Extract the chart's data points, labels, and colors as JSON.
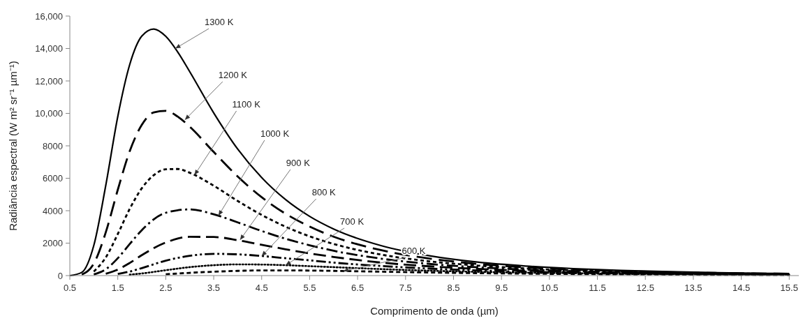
{
  "chart_data": {
    "type": "line",
    "xlabel": "Comprimento de onda (µm)",
    "ylabel": "Radiância espectral  (W m² sr⁻¹ µm⁻¹)",
    "xlim": [
      0.5,
      15.7
    ],
    "xticks": [
      0.5,
      1.5,
      2.5,
      3.5,
      4.5,
      5.5,
      6.5,
      7.5,
      8.5,
      9.5,
      10.5,
      11.5,
      12.5,
      13.5,
      14.5,
      15.5
    ],
    "ylim": [
      0,
      16000
    ],
    "yticks": [
      0,
      2000,
      4000,
      6000,
      8000,
      {
        "value": 10000,
        "label": "10,000"
      },
      {
        "value": 12000,
        "label": "12,000"
      },
      {
        "value": 14000,
        "label": "14,000"
      },
      {
        "value": 16000,
        "label": "16,000"
      }
    ],
    "grid": false,
    "marker": "none",
    "series": [
      {
        "color": "#000000",
        "line_style": "solid",
        "x": [
          0.5,
          0.75,
          1,
          1.25,
          1.5,
          1.75,
          2,
          2.25,
          2.5,
          2.75,
          3,
          3.5,
          4,
          4.5,
          5,
          5.5,
          6,
          7,
          8,
          9,
          10,
          11,
          12,
          13,
          14,
          15,
          15.5
        ],
        "values": [
          0,
          200,
          1860,
          5570,
          9810,
          13020,
          14760,
          15200,
          14750,
          13780,
          12570,
          10030,
          7800,
          6040,
          4680,
          3650,
          2870,
          1840,
          1220,
          830,
          590,
          430,
          320,
          240,
          180,
          140,
          130
        ]
      },
      {
        "color": "#000000",
        "line_style": "dashed",
        "x": [
          0.75,
          1,
          1.25,
          1.5,
          1.75,
          2,
          2.25,
          2.5,
          2.75,
          3,
          3.5,
          4,
          4.5,
          5,
          5.5,
          6,
          7,
          8,
          9,
          10,
          12,
          14,
          15.5
        ],
        "values": [
          60,
          740,
          2670,
          5290,
          7680,
          9290,
          10060,
          10160,
          9800,
          9180,
          7620,
          6110,
          4830,
          3810,
          3020,
          2400,
          1560,
          1050,
          720,
          510,
          280,
          160,
          110
        ]
      },
      {
        "color": "#000000",
        "line_style": "dashed",
        "x": [
          1,
          1.25,
          1.5,
          1.75,
          2,
          2.25,
          2.5,
          2.75,
          3,
          3.5,
          4,
          4.5,
          5,
          5.5,
          6,
          7,
          8,
          9,
          10,
          12,
          14,
          15.5
        ],
        "values": [
          250,
          1120,
          2560,
          4120,
          5380,
          6190,
          6550,
          6570,
          6340,
          5540,
          4600,
          3740,
          3010,
          2420,
          1950,
          1290,
          880,
          620,
          440,
          240,
          140,
          100
        ]
      },
      {
        "color": "#000000",
        "line_style": "dashed",
        "x": [
          1,
          1.25,
          1.5,
          1.75,
          2,
          2.5,
          3,
          3.5,
          4,
          4.5,
          5,
          5.5,
          6,
          7,
          8,
          9,
          10,
          12,
          14,
          15.5
        ],
        "values": [
          70,
          390,
          1070,
          1950,
          2800,
          3870,
          4080,
          3780,
          3280,
          2750,
          2270,
          1870,
          1530,
          1040,
          720,
          510,
          370,
          210,
          120,
          90
        ]
      },
      {
        "color": "#000000",
        "line_style": "dashed",
        "x": [
          1.25,
          1.5,
          1.75,
          2,
          2.5,
          3,
          3.5,
          4,
          4.5,
          5,
          5.5,
          6,
          7,
          8,
          9,
          10,
          12,
          14,
          15.5
        ],
        "values": [
          110,
          370,
          780,
          1260,
          2040,
          2390,
          2380,
          2180,
          1900,
          1620,
          1370,
          1150,
          800,
          570,
          410,
          300,
          170,
          100,
          70
        ]
      },
      {
        "color": "#000000",
        "line_style": "dashed",
        "x": [
          1.5,
          1.75,
          2,
          2.5,
          3,
          3.5,
          4,
          4.5,
          5,
          5.5,
          6,
          7,
          8,
          9,
          10,
          12,
          14,
          15.5
        ],
        "values": [
          100,
          250,
          460,
          920,
          1220,
          1340,
          1310,
          1210,
          1070,
          940,
          800,
          590,
          430,
          320,
          240,
          140,
          90,
          60
        ]
      },
      {
        "color": "#000000",
        "line_style": "dotted",
        "x": [
          1.75,
          2,
          2.5,
          3,
          3.5,
          4,
          4.5,
          5,
          5.5,
          6,
          7,
          8,
          9,
          10,
          12,
          14,
          15.5
        ],
        "values": [
          60,
          130,
          330,
          520,
          640,
          690,
          680,
          640,
          580,
          520,
          400,
          300,
          230,
          180,
          110,
          70,
          50
        ]
      },
      {
        "color": "#000000",
        "line_style": "dashed",
        "x": [
          2.5,
          3,
          3.5,
          4,
          4.5,
          5,
          5.5,
          6,
          7,
          8,
          9,
          10,
          12,
          14,
          15.5
        ],
        "values": [
          80,
          170,
          240,
          290,
          320,
          320,
          310,
          290,
          240,
          190,
          150,
          120,
          80,
          50,
          40
        ]
      }
    ],
    "annotations": [
      {
        "text": "1300 K",
        "x": 2.7,
        "y": 14000
      },
      {
        "text": "1200 K",
        "x": 2.9,
        "y": 9600
      },
      {
        "text": "1100 K",
        "x": 3.1,
        "y": 6200
      },
      {
        "text": "1000 K",
        "x": 3.6,
        "y": 3700
      },
      {
        "text": "900 K",
        "x": 4.05,
        "y": 2200
      },
      {
        "text": "800 K",
        "x": 4.5,
        "y": 1200
      },
      {
        "text": "700 K",
        "x": 5,
        "y": 640
      },
      {
        "text": "600 K",
        "x": 6.2,
        "y": 280
      }
    ]
  }
}
